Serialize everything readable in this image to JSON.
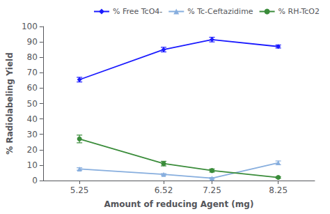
{
  "chart_data": {
    "type": "line",
    "x": [
      5.25,
      6.52,
      7.25,
      8.25
    ],
    "series": [
      {
        "name": "% Free TcO4-",
        "color": "#1a1aff",
        "marker": "diamond",
        "values": [
          65.5,
          85.0,
          91.5,
          87.0
        ],
        "errors": [
          1.5,
          1.5,
          1.5,
          1.0
        ]
      },
      {
        "name": "% Tc-Ceftazidime",
        "color": "#87AEDE",
        "marker": "triangle",
        "values": [
          7.5,
          4.0,
          1.5,
          11.5
        ],
        "errors": [
          0.8,
          0.5,
          0.5,
          1.2
        ]
      },
      {
        "name": "% RH-TcO2",
        "color": "#3a8c3a",
        "marker": "circle",
        "values": [
          27.0,
          11.0,
          6.5,
          2.0
        ],
        "errors": [
          2.5,
          1.5,
          1.0,
          0.5
        ]
      }
    ],
    "xlabel": "Amount of reducing Agent (mg)",
    "ylabel": "% Radiolabeling Yield",
    "xlim": [
      4.7,
      8.8
    ],
    "xticks": [
      5.25,
      6.52,
      7.25,
      8.25
    ],
    "ylim": [
      0,
      100
    ],
    "yticks": [
      0,
      10,
      20,
      30,
      40,
      50,
      60,
      70,
      80,
      90,
      100
    ],
    "grid": false,
    "legend": "upper right"
  }
}
